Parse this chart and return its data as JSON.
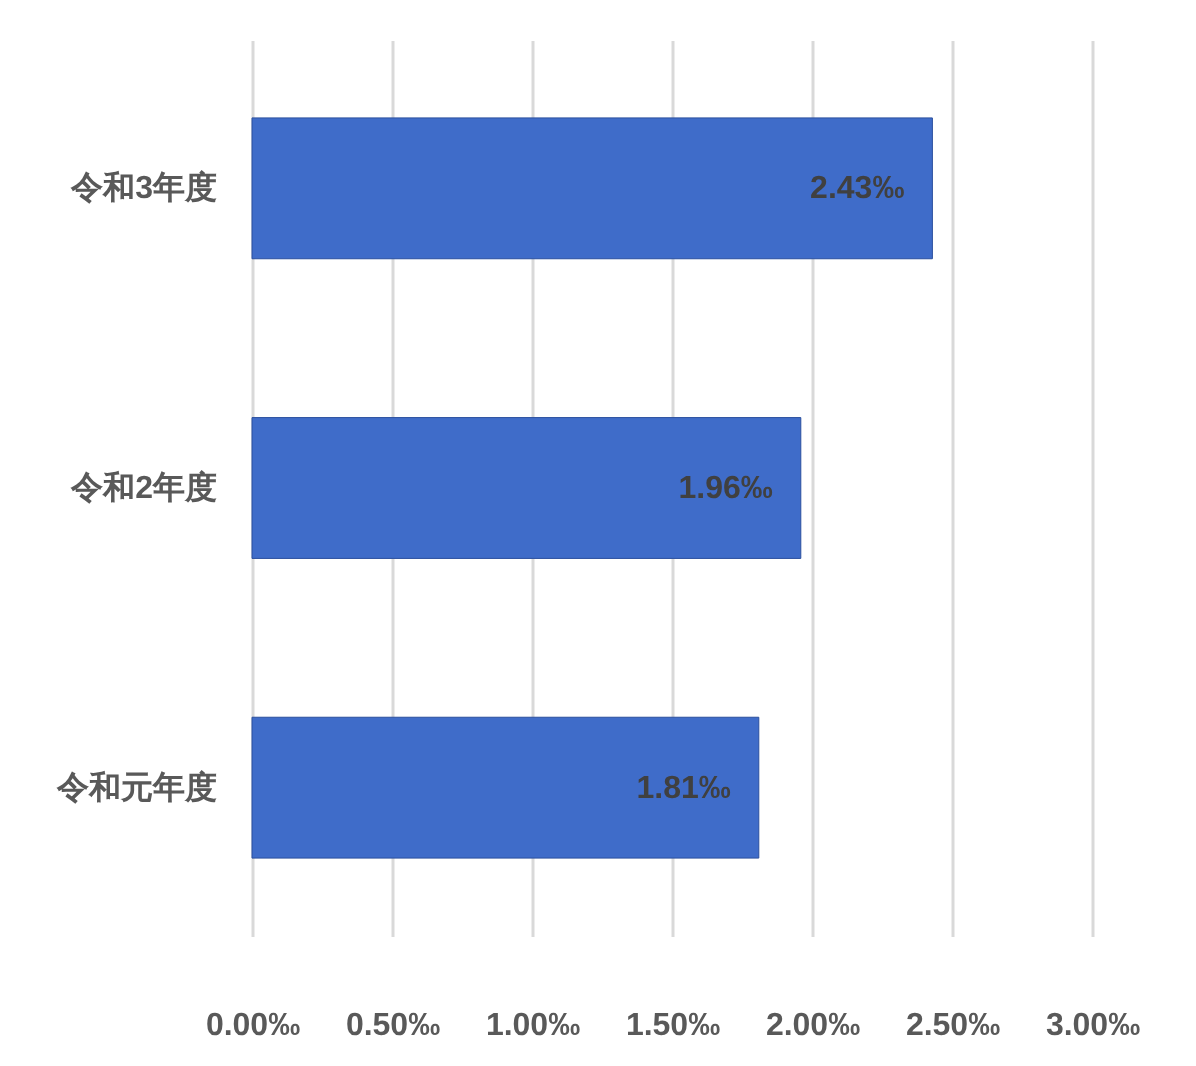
{
  "chart_data": {
    "type": "bar",
    "orientation": "horizontal",
    "categories": [
      "令和3年度",
      "令和2年度",
      "令和元年度"
    ],
    "values": [
      2.43,
      1.96,
      1.81
    ],
    "value_labels": [
      "2.43‰",
      "1.96‰",
      "1.81‰"
    ],
    "color": "#3f6cc9",
    "xlim": [
      0,
      3
    ],
    "xticks": [
      {
        "value": 0,
        "label": "0.00‰"
      },
      {
        "value": 0.5,
        "label": "0.50‰"
      },
      {
        "value": 1,
        "label": "1.00‰"
      },
      {
        "value": 1.5,
        "label": "1.50‰"
      },
      {
        "value": 2,
        "label": "2.00‰"
      },
      {
        "value": 2.5,
        "label": "2.50‰"
      },
      {
        "value": 3,
        "label": "3.00‰"
      }
    ],
    "grid": "x"
  }
}
